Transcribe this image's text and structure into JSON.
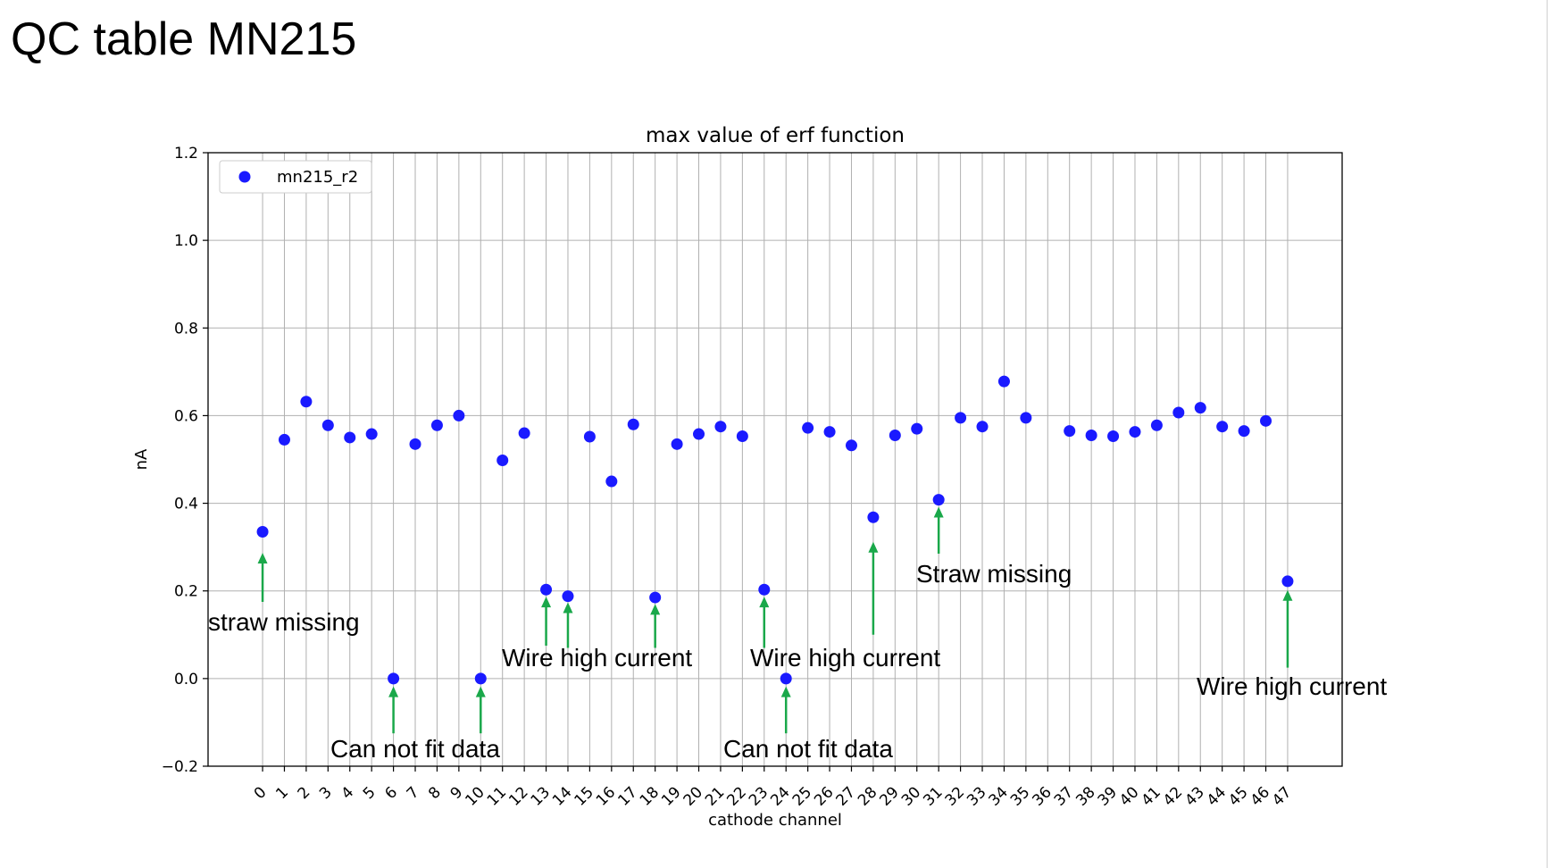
{
  "slide": {
    "title": "QC table MN215"
  },
  "chart_data": {
    "type": "scatter",
    "title": "max value of erf function",
    "xlabel": "cathode channel",
    "ylabel": "nA",
    "xlim": [
      -2.5,
      49.5
    ],
    "ylim": [
      -0.2,
      1.2
    ],
    "yticks": [
      -0.2,
      0.0,
      0.2,
      0.4,
      0.6,
      0.8,
      1.0,
      1.2
    ],
    "ytick_labels": [
      "−0.2",
      "0.0",
      "0.2",
      "0.4",
      "0.6",
      "0.8",
      "1.0",
      "1.2"
    ],
    "xticks": [
      0,
      1,
      2,
      3,
      4,
      5,
      6,
      7,
      8,
      9,
      10,
      11,
      12,
      13,
      14,
      15,
      16,
      17,
      18,
      19,
      20,
      21,
      22,
      23,
      24,
      25,
      26,
      27,
      28,
      29,
      30,
      31,
      32,
      33,
      34,
      35,
      36,
      37,
      38,
      39,
      40,
      41,
      42,
      43,
      44,
      45,
      46,
      47
    ],
    "xtick_labels": [
      "0",
      "1",
      "2",
      "3",
      "4",
      "5",
      "6",
      "7",
      "8",
      "9",
      "10",
      "11",
      "12",
      "13",
      "14",
      "15",
      "16",
      "17",
      "18",
      "19",
      "20",
      "21",
      "22",
      "23",
      "24",
      "25",
      "26",
      "27",
      "28",
      "29",
      "30",
      "31",
      "32",
      "33",
      "34",
      "35",
      "36",
      "37",
      "38",
      "39",
      "40",
      "41",
      "42",
      "43",
      "44",
      "45",
      "46",
      "47"
    ],
    "grid": true,
    "legend_position": "upper-left",
    "series": [
      {
        "name": "mn215_r2",
        "color": "#1a1aff",
        "x": [
          0,
          1,
          2,
          3,
          4,
          5,
          6,
          7,
          8,
          9,
          10,
          11,
          12,
          13,
          14,
          15,
          16,
          17,
          18,
          19,
          20,
          21,
          22,
          23,
          24,
          25,
          26,
          27,
          28,
          29,
          30,
          31,
          32,
          33,
          34,
          35,
          37,
          38,
          39,
          40,
          41,
          42,
          43,
          44,
          45,
          46,
          47
        ],
        "y": [
          0.335,
          0.545,
          0.632,
          0.578,
          0.55,
          0.558,
          0.0,
          0.535,
          0.578,
          0.6,
          0.0,
          0.498,
          0.56,
          0.203,
          0.188,
          0.552,
          0.45,
          0.58,
          0.185,
          0.535,
          0.558,
          0.575,
          0.553,
          0.203,
          0.0,
          0.572,
          0.563,
          0.532,
          0.368,
          0.555,
          0.57,
          0.408,
          0.595,
          0.575,
          0.678,
          0.595,
          0.565,
          0.555,
          0.553,
          0.563,
          0.578,
          0.607,
          0.618,
          0.575,
          0.565,
          0.588,
          0.222
        ]
      }
    ],
    "annotations": [
      {
        "text": "straw missing",
        "arrows": [
          {
            "x": 0,
            "y_from": 0.175,
            "y_to": 0.285
          }
        ]
      },
      {
        "text": "Can not fit data",
        "arrows": [
          {
            "x": 6,
            "y_from": -0.125,
            "y_to": -0.02
          },
          {
            "x": 10,
            "y_from": -0.125,
            "y_to": -0.02
          }
        ]
      },
      {
        "text": "Wire high current",
        "arrows": [
          {
            "x": 13,
            "y_from": 0.075,
            "y_to": 0.185
          },
          {
            "x": 14,
            "y_from": 0.07,
            "y_to": 0.172
          },
          {
            "x": 18,
            "y_from": 0.07,
            "y_to": 0.168
          }
        ]
      },
      {
        "text": "Wire high current",
        "arrows": [
          {
            "x": 23,
            "y_from": 0.07,
            "y_to": 0.185
          }
        ]
      },
      {
        "text": "Can not fit data",
        "arrows": [
          {
            "x": 24,
            "y_from": -0.125,
            "y_to": -0.02
          }
        ]
      },
      {
        "text": "Straw missing",
        "arrows": [
          {
            "x": 28,
            "y_from": 0.1,
            "y_to": 0.31
          },
          {
            "x": 31,
            "y_from": 0.285,
            "y_to": 0.39
          }
        ]
      },
      {
        "text": "Wire high current",
        "arrows": [
          {
            "x": 47,
            "y_from": 0.025,
            "y_to": 0.2
          }
        ]
      }
    ],
    "arrow_color": "#1aa84a"
  }
}
